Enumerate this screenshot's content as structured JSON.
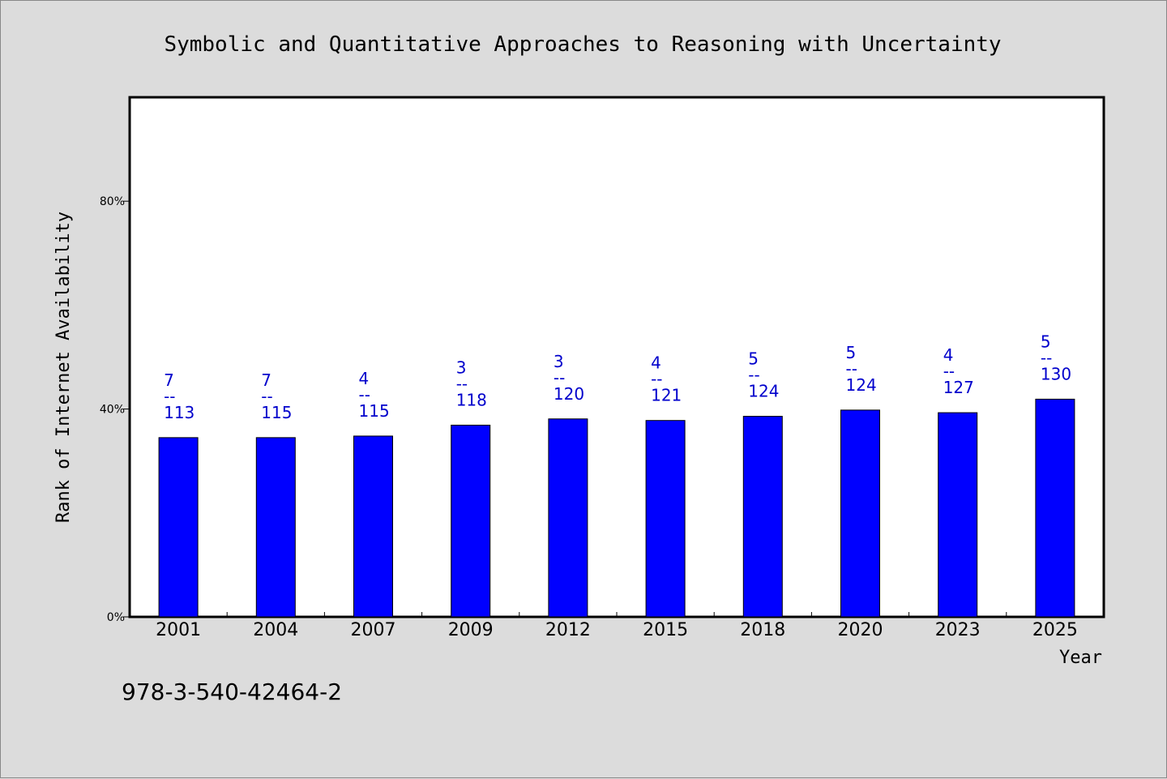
{
  "chart_data": {
    "type": "bar",
    "title": "Symbolic and Quantitative Approaches to Reasoning with Uncertainty",
    "xlabel": "Year",
    "ylabel": "Rank of Internet Availability",
    "categories": [
      "2001",
      "2004",
      "2007",
      "2009",
      "2012",
      "2015",
      "2018",
      "2020",
      "2023",
      "2025"
    ],
    "values": [
      34.5,
      34.5,
      34.8,
      36.9,
      38.1,
      37.8,
      38.6,
      39.8,
      39.3,
      41.9
    ],
    "numerators": [
      "7",
      "7",
      "4",
      "3",
      "3",
      "4",
      "5",
      "5",
      "4",
      "5"
    ],
    "denominators": [
      "113",
      "115",
      "115",
      "118",
      "120",
      "121",
      "124",
      "124",
      "127",
      "130"
    ],
    "fraction_bar": "--",
    "ylim": [
      0,
      100
    ],
    "yticks": [
      0,
      40,
      80
    ],
    "ytick_labels": [
      "0%",
      "40%",
      "80%"
    ],
    "bar_color": "#0000ff",
    "label_color": "#0000cc",
    "grid": false,
    "footer": "978-3-540-42464-2"
  }
}
